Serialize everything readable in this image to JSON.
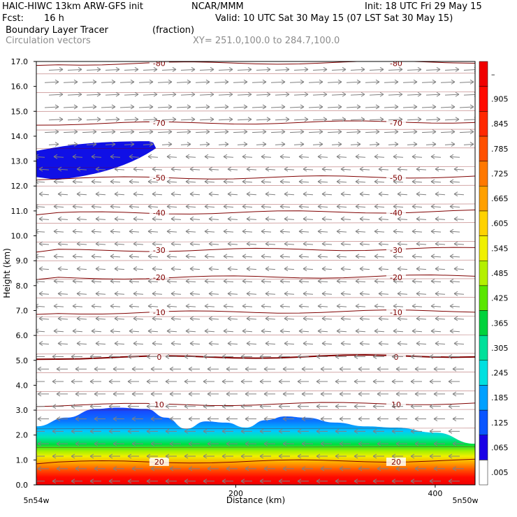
{
  "header": {
    "model": "HAIC-HIWC 13km ARW-GFS init",
    "org": "NCAR/MMM",
    "init": "Init: 18 UTC Fri 29 May 15",
    "fcst_label": "Fcst:",
    "fcst_value": "16 h",
    "valid": "Valid: 10 UTC Sat 30 May 15 (07 LST Sat 30 May 15)",
    "field": "Boundary Layer Tracer",
    "field_units": "(fraction)",
    "vectors": "Circulation vectors",
    "xy": "XY= 251.0,100.0 to 284.7,100.0"
  },
  "chart_data": {
    "type": "heatmap",
    "title": "Boundary Layer Tracer",
    "xlabel": "Distance (km)",
    "ylabel": "Height (km)",
    "xlim": [
      0,
      440
    ],
    "ylim": [
      0,
      17
    ],
    "x_ticks": [
      "200",
      "400"
    ],
    "x_tick_values": [
      200,
      400
    ],
    "x_end_labels": [
      "5n54w",
      "5n50w"
    ],
    "y_ticks": [
      "0.0",
      "1.0",
      "2.0",
      "3.0",
      "4.0",
      "5.0",
      "6.0",
      "7.0",
      "8.0",
      "9.0",
      "10.0",
      "11.0",
      "12.0",
      "13.0",
      "14.0",
      "15.0",
      "16.0",
      "17.0"
    ],
    "colorbar_labels": [
      ".005",
      ".065",
      ".125",
      ".185",
      ".245",
      ".305",
      ".365",
      ".425",
      ".485",
      ".545",
      ".605",
      ".665",
      ".725",
      ".785",
      ".845",
      ".905",
      "–"
    ],
    "colorbar_colors": [
      "#ffffff",
      "#1a00e6",
      "#0a55ff",
      "#00a0ff",
      "#00e0e0",
      "#00e09a",
      "#00d23c",
      "#5ae600",
      "#b4f000",
      "#f0f000",
      "#ffd200",
      "#ffa000",
      "#ff7800",
      "#ff5000",
      "#ff2800",
      "#ff0a00",
      "#f00000"
    ],
    "tracer_top_km": [
      [
        0,
        2.35
      ],
      [
        30,
        2.7
      ],
      [
        60,
        3.05
      ],
      [
        80,
        3.1
      ],
      [
        110,
        3.05
      ],
      [
        130,
        2.7
      ],
      [
        150,
        2.25
      ],
      [
        170,
        2.55
      ],
      [
        190,
        2.5
      ],
      [
        210,
        2.3
      ],
      [
        230,
        2.6
      ],
      [
        250,
        2.75
      ],
      [
        270,
        2.7
      ],
      [
        300,
        2.5
      ],
      [
        330,
        2.35
      ],
      [
        360,
        2.3
      ],
      [
        400,
        2.1
      ],
      [
        440,
        1.65
      ]
    ],
    "upper_tracer_blob": {
      "x": [
        0,
        120
      ],
      "bottom_km": 12.25,
      "top_km": 13.8
    },
    "temperature_contours": [
      {
        "label": "-80",
        "height_km": 16.9
      },
      {
        "label": "-70",
        "height_km": 14.5
      },
      {
        "label": "-50",
        "height_km": 12.3
      },
      {
        "label": "-40",
        "height_km": 10.9
      },
      {
        "label": "-30",
        "height_km": 9.4
      },
      {
        "label": "-20",
        "height_km": 8.3
      },
      {
        "label": "-10",
        "height_km": 6.9
      },
      {
        "label": "0",
        "height_km": 5.1
      },
      {
        "label": "10",
        "height_km": 3.2
      },
      {
        "label": "20",
        "height_km": 0.9
      }
    ],
    "contour_line_color": "#800000",
    "vector_color": "#808080"
  }
}
